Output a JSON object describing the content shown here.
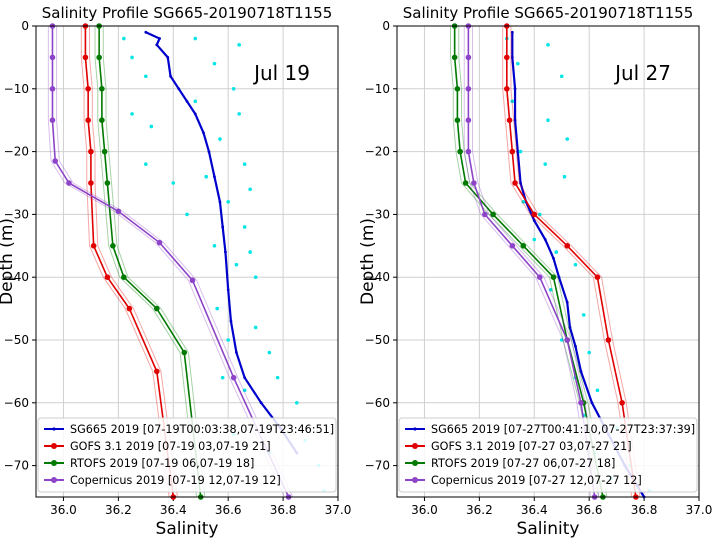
{
  "chart_data": [
    {
      "type": "line",
      "title": "Salinity Profile SG665-20190718T1155",
      "annotation": "Jul 19",
      "xlabel": "Salinity",
      "ylabel": "Depth (m)",
      "xlim": [
        35.9,
        37.0
      ],
      "ylim": [
        -75,
        0
      ],
      "xticks": [
        "36.0",
        "36.2",
        "36.4",
        "36.6",
        "36.8",
        "37.0"
      ],
      "yticks": [
        "0",
        "−10",
        "−20",
        "−30",
        "−40",
        "−50",
        "−60",
        "−70"
      ],
      "grid": true,
      "legend_position": "lower-left",
      "series": [
        {
          "name": "SG665 2019 [07-19T00:03:38,07-19T23:46:51]",
          "color": "#0000cc",
          "marker": "dot",
          "x": [
            36.3,
            36.35,
            36.34,
            36.38,
            36.39,
            36.42,
            36.45,
            36.48,
            36.51,
            36.53,
            36.55,
            36.57,
            36.58,
            36.59,
            36.6,
            36.61,
            36.63,
            36.66,
            36.72,
            36.79,
            36.85
          ],
          "y": [
            -1,
            -2,
            -3,
            -5,
            -8,
            -10,
            -12,
            -14,
            -17,
            -20,
            -24,
            -28,
            -32,
            -36,
            -42,
            -47,
            -52,
            -56,
            -60,
            -64,
            -68
          ]
        },
        {
          "name": "SG665 scatter",
          "color": "#00e5e5",
          "marker": "dot",
          "x": [
            36.22,
            36.25,
            36.3,
            36.48,
            36.55,
            36.64,
            36.62,
            36.25,
            36.32,
            36.48,
            36.57,
            36.64,
            36.66,
            36.3,
            36.4,
            36.52,
            36.6,
            36.68,
            36.66,
            36.45,
            36.55,
            36.63,
            36.68,
            36.7,
            36.56,
            36.6,
            36.7,
            36.75,
            36.58,
            36.66,
            36.78,
            36.85,
            36.62,
            36.75,
            36.88,
            36.93,
            36.95
          ],
          "y": [
            -2,
            -5,
            -8,
            -2,
            -6,
            -3,
            -10,
            -14,
            -16,
            -12,
            -18,
            -14,
            -22,
            -22,
            -25,
            -24,
            -28,
            -26,
            -32,
            -30,
            -35,
            -38,
            -36,
            -40,
            -45,
            -50,
            -48,
            -52,
            -56,
            -58,
            -56,
            -60,
            -65,
            -68,
            -66,
            -70,
            -74
          ]
        },
        {
          "name": "GOFS 3.1 2019 [07-19 03,07-19 21]",
          "color": "#e00000",
          "marker": "dot",
          "x": [
            36.08,
            36.08,
            36.09,
            36.09,
            36.1,
            36.1,
            36.11,
            36.16,
            36.24,
            36.34,
            36.4
          ],
          "y": [
            0,
            -5,
            -10,
            -15,
            -20,
            -25,
            -35,
            -40,
            -45,
            -55,
            -75
          ]
        },
        {
          "name": "RTOFS 2019 [07-19 06,07-19 18]",
          "color": "#007a00",
          "marker": "dot",
          "x": [
            36.13,
            36.13,
            36.14,
            36.14,
            36.15,
            36.16,
            36.18,
            36.22,
            36.34,
            36.44,
            36.5
          ],
          "y": [
            0,
            -5,
            -10,
            -15,
            -20,
            -25,
            -35,
            -40,
            -45,
            -52,
            -75
          ]
        },
        {
          "name": "Copernicus 2019 [07-19 12,07-19 12]",
          "color": "#8e44c8",
          "marker": "dot",
          "x": [
            35.96,
            35.96,
            35.96,
            35.96,
            35.97,
            36.02,
            36.2,
            36.35,
            36.47,
            36.62,
            36.82
          ],
          "y": [
            0,
            -5,
            -10,
            -15,
            -21.5,
            -25,
            -29.5,
            -34.5,
            -40.5,
            -56,
            -75
          ]
        }
      ]
    },
    {
      "type": "line",
      "title": "Salinity Profile SG665-20190718T1155",
      "annotation": "Jul 27",
      "xlabel": "Salinity",
      "ylabel": "Depth (m)",
      "xlim": [
        35.9,
        37.0
      ],
      "ylim": [
        -75,
        0
      ],
      "xticks": [
        "36.0",
        "36.2",
        "36.4",
        "36.6",
        "36.8",
        "37.0"
      ],
      "yticks": [
        "0",
        "−10",
        "−20",
        "−30",
        "−40",
        "−50",
        "−60",
        "−70"
      ],
      "grid": true,
      "legend_position": "lower-left",
      "series": [
        {
          "name": "SG665 2019 [07-27T00:41:10,07-27T23:37:39]",
          "color": "#0000cc",
          "marker": "dot",
          "x": [
            36.32,
            36.32,
            36.33,
            36.33,
            36.34,
            36.35,
            36.37,
            36.4,
            36.44,
            36.47,
            36.49,
            36.52,
            36.53,
            36.55,
            36.57,
            36.61,
            36.67,
            36.73,
            36.8
          ],
          "y": [
            -1,
            -5,
            -10,
            -15,
            -20,
            -25,
            -28,
            -31,
            -34,
            -37,
            -40,
            -44,
            -48,
            -51,
            -55,
            -60,
            -65,
            -70,
            -75
          ]
        },
        {
          "name": "SG665 scatter",
          "color": "#00e5e5",
          "marker": "dot",
          "x": [
            36.3,
            36.34,
            36.45,
            36.5,
            36.32,
            36.45,
            36.52,
            36.35,
            36.44,
            36.51,
            36.36,
            36.42,
            36.4,
            36.48,
            36.55,
            36.46,
            36.58,
            36.5,
            36.6,
            36.55,
            36.63,
            36.58,
            36.7,
            36.62,
            36.75,
            36.68,
            36.82
          ],
          "y": [
            -2,
            -6,
            -3,
            -8,
            -12,
            -15,
            -18,
            -20,
            -22,
            -24,
            -28,
            -30,
            -34,
            -36,
            -38,
            -42,
            -46,
            -50,
            -52,
            -56,
            -58,
            -62,
            -64,
            -68,
            -70,
            -72,
            -74
          ]
        },
        {
          "name": "GOFS 3.1 2019 [07-27 03,07-27 21]",
          "color": "#e00000",
          "marker": "dot",
          "x": [
            36.3,
            36.3,
            36.3,
            36.31,
            36.32,
            36.33,
            36.4,
            36.52,
            36.63,
            36.67,
            36.72,
            36.77
          ],
          "y": [
            0,
            -5,
            -10,
            -15,
            -20,
            -25,
            -30,
            -35,
            -40,
            -50,
            -60,
            -75
          ]
        },
        {
          "name": "RTOFS 2019 [07-27 06,07-27 18]",
          "color": "#007a00",
          "marker": "dot",
          "x": [
            36.11,
            36.11,
            36.12,
            36.12,
            36.13,
            36.15,
            36.25,
            36.36,
            36.47,
            36.52,
            36.58,
            36.65
          ],
          "y": [
            0,
            -5,
            -10,
            -15,
            -20,
            -25,
            -30,
            -35,
            -40,
            -50,
            -60,
            -75
          ]
        },
        {
          "name": "Copernicus 2019 [07-27 12,07-27 12]",
          "color": "#8e44c8",
          "marker": "dot",
          "x": [
            36.16,
            36.16,
            36.16,
            36.16,
            36.16,
            36.18,
            36.22,
            36.32,
            36.42,
            36.52,
            36.57,
            36.62
          ],
          "y": [
            0,
            -5,
            -10,
            -15,
            -20,
            -25,
            -30,
            -35,
            -40,
            -50,
            -60,
            -75
          ]
        }
      ]
    }
  ]
}
